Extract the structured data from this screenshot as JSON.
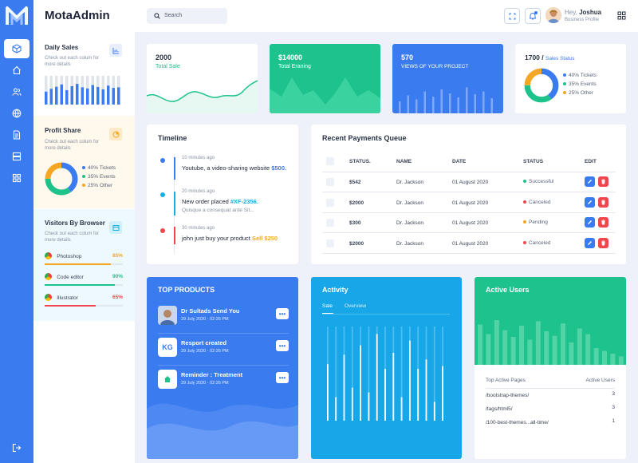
{
  "app": {
    "title": "MotaAdmin"
  },
  "topbar": {
    "search_placeholder": "Search",
    "greeting": "Hey,",
    "user_name": "Joshua",
    "user_role": "Business Profile"
  },
  "sidebar": {
    "daily_sales": {
      "title": "Daily Sales",
      "subtitle": "Check out each colum for more details",
      "bars": [
        0.45,
        0.55,
        0.62,
        0.7,
        0.5,
        0.64,
        0.72,
        0.6,
        0.56,
        0.68,
        0.61,
        0.53,
        0.66,
        0.58,
        0.6
      ]
    },
    "profit_share": {
      "title": "Profit Share",
      "subtitle": "Check out each colum for more details",
      "legend": [
        {
          "label": "40% Tickets",
          "color": "#3a7bf0",
          "value": 40
        },
        {
          "label": "35% Events",
          "color": "#1ec28b",
          "value": 35
        },
        {
          "label": "25% Other",
          "color": "#f5a623",
          "value": 25
        }
      ]
    },
    "browsers": {
      "title": "Visitors By Browser",
      "subtitle": "Check out each colum for more details",
      "items": [
        {
          "name": "Photoshop",
          "percent": "85%",
          "value": 85,
          "color": "#f5a623"
        },
        {
          "name": "Code editor",
          "percent": "90%",
          "value": 90,
          "color": "#1ec28b"
        },
        {
          "name": "Illustrator",
          "percent": "65%",
          "value": 65,
          "color": "#f0474f"
        }
      ]
    }
  },
  "stats": {
    "total_sale": {
      "value": "2000",
      "label": "Total Sale"
    },
    "total_earning": {
      "value": "$14000",
      "label": "Total Eraning"
    },
    "views": {
      "value": "570",
      "label": "VIEWS OF YOUR PROJECT"
    },
    "sales_status": {
      "value": "1700",
      "separator": " / ",
      "label": "Sales Status",
      "legend": [
        {
          "label": "40% Tickets",
          "color": "#3a7bf0",
          "value": 40
        },
        {
          "label": "35% Events",
          "color": "#1ec28b",
          "value": 35
        },
        {
          "label": "25% Other",
          "color": "#f5a623",
          "value": 25
        }
      ]
    }
  },
  "timeline": {
    "title": "Timeline",
    "items": [
      {
        "time": "10 minutes ago",
        "text": "Youtube, a video-sharing website ",
        "highlight": "$500.",
        "sub": "",
        "color": "#3a7bf0",
        "hl_color": "#3a7bf0"
      },
      {
        "time": "20 minutes ago",
        "text": "New order placed ",
        "highlight": "#XF-2356.",
        "sub": "Quisque a consequat ante Sit...",
        "color": "#17b0e0",
        "hl_color": "#17b0e0"
      },
      {
        "time": "30 minutes ago",
        "text": "john just buy your product ",
        "highlight": "Sell $250",
        "sub": "",
        "color": "#f0474f",
        "hl_color": "#f5a623"
      }
    ]
  },
  "payments": {
    "title": "Recent Payments Queue",
    "columns": [
      "STATUS.",
      "NAME",
      "DATE",
      "STATUS",
      "EDIT"
    ],
    "rows": [
      {
        "amount": "$542",
        "name": "Dr. Jackson",
        "date": "01 August 2020",
        "status": "Successful",
        "color": "#1ec28b"
      },
      {
        "amount": "$2000",
        "name": "Dr. Jackson",
        "date": "01 August 2020",
        "status": "Canceled",
        "color": "#f0474f"
      },
      {
        "amount": "$300",
        "name": "Dr. Jackson",
        "date": "01 August 2020",
        "status": "Pending",
        "color": "#f5a623"
      },
      {
        "amount": "$2000",
        "name": "Dr. Jackson",
        "date": "01 August 2020",
        "status": "Canceled",
        "color": "#f0474f"
      }
    ]
  },
  "top_products": {
    "title": "TOP PRODUCTS",
    "items": [
      {
        "title": "Dr Sultads Send You",
        "date": "29 July 2020 - 02:26 PM",
        "thumb": ""
      },
      {
        "title": "Resport created",
        "date": "29 July 2020 - 02:26 PM",
        "thumb": "KG"
      },
      {
        "title": "Reminder : Treatment",
        "date": "29 July 2020 - 02:26 PM",
        "thumb": ""
      }
    ]
  },
  "activity": {
    "title": "Activity",
    "tabs": [
      "Sale",
      "Overview"
    ],
    "bars": [
      0.6,
      0.25,
      0.7,
      0.35,
      0.8,
      0.3,
      0.92,
      0.55,
      0.72,
      0.25,
      0.85,
      0.55,
      0.65,
      0.2,
      0.58
    ]
  },
  "active_users": {
    "title": "Active Users",
    "col_pages": "Top Active Pages",
    "col_users": "Active Users",
    "rows": [
      {
        "page": "/bootstrap-themes/",
        "users": "3"
      },
      {
        "page": "/tags/html5/",
        "users": "3"
      },
      {
        "page": "/100-best-themes...all-time/",
        "users": "1"
      }
    ]
  }
}
